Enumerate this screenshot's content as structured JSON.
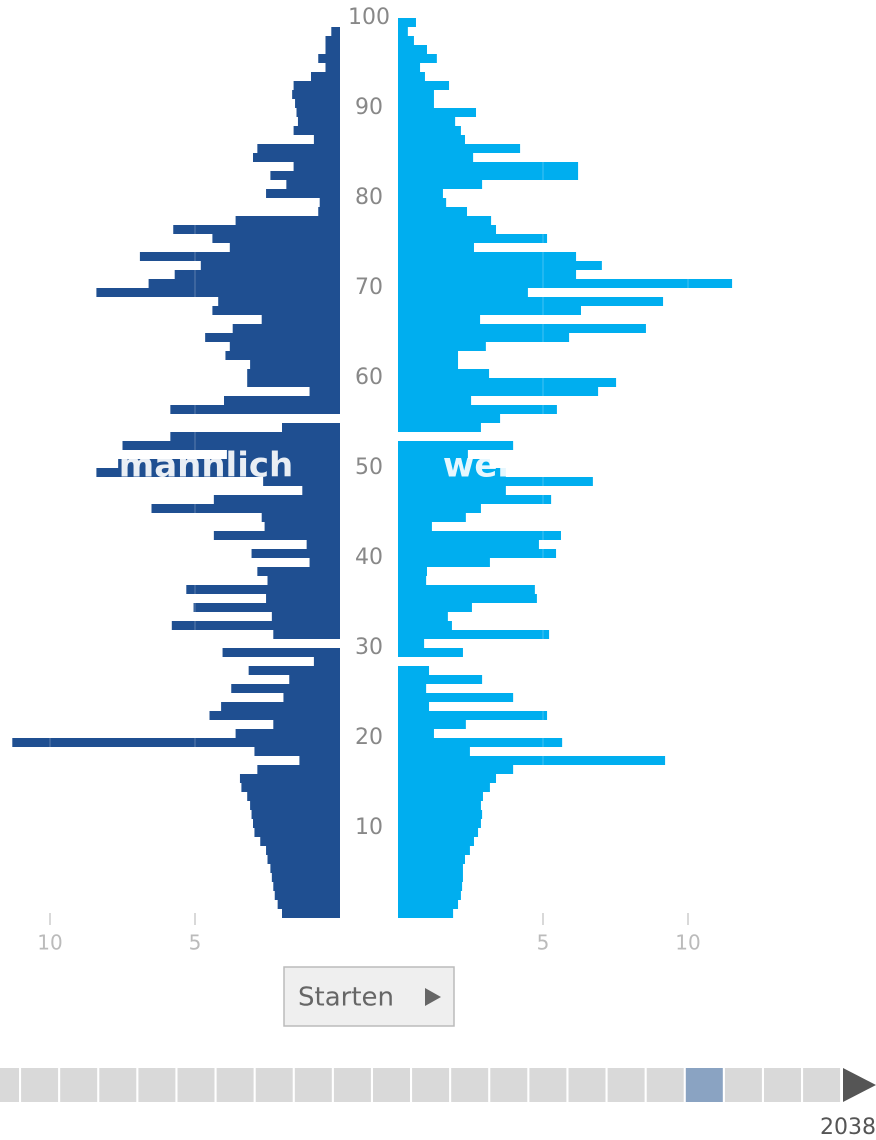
{
  "chart_data": {
    "type": "pyramid",
    "y": [
      0,
      1,
      2,
      3,
      4,
      5,
      6,
      7,
      8,
      9,
      10,
      11,
      12,
      13,
      14,
      15,
      16,
      17,
      18,
      19,
      20,
      21,
      22,
      23,
      24,
      25,
      26,
      27,
      28,
      29,
      30,
      31,
      32,
      33,
      34,
      35,
      36,
      37,
      38,
      39,
      40,
      41,
      42,
      43,
      44,
      45,
      46,
      47,
      48,
      49,
      50,
      51,
      52,
      53,
      54,
      55,
      56,
      57,
      58,
      59,
      60,
      61,
      62,
      63,
      64,
      65,
      66,
      67,
      68,
      69,
      70,
      71,
      72,
      73,
      74,
      75,
      76,
      77,
      78,
      79,
      80,
      81,
      82,
      83,
      84,
      85,
      86,
      87,
      88,
      89,
      90,
      91,
      92,
      93,
      94,
      95,
      96,
      97,
      98,
      99
    ],
    "series": [
      {
        "name": "männlich",
        "color": "#1f4f91",
        "values": [
          2.0,
          2.15,
          2.25,
          2.3,
          2.35,
          2.4,
          2.5,
          2.55,
          2.75,
          2.95,
          3.0,
          3.05,
          3.1,
          3.2,
          3.4,
          3.45,
          2.85,
          1.4,
          2.95,
          11.3,
          3.6,
          2.3,
          4.5,
          4.1,
          1.95,
          3.75,
          1.75,
          3.15,
          0.9,
          4.05,
          0,
          2.3,
          5.8,
          2.35,
          5.05,
          2.55,
          5.3,
          2.5,
          2.85,
          1.05,
          3.05,
          1.15,
          4.35,
          2.6,
          2.7,
          6.5,
          4.35,
          1.3,
          2.65,
          8.4,
          7.65,
          3.9,
          7.5,
          5.85,
          2.0,
          0,
          5.85,
          4.0,
          1.05,
          3.2,
          3.2,
          3.1,
          3.95,
          3.8,
          4.65,
          3.7,
          2.7,
          4.4,
          4.2,
          8.4,
          6.6,
          5.7,
          4.8,
          6.9,
          3.8,
          4.4,
          5.75,
          3.6,
          0.75,
          0.7,
          2.55,
          1.85,
          2.4,
          1.6,
          3.0,
          2.85,
          0.9,
          1.6,
          1.45,
          1.5,
          1.55,
          1.65,
          1.6,
          1.0,
          0.5,
          0.75,
          0.5,
          0.5,
          0.3,
          0
        ]
      },
      {
        "name": "weiblich",
        "color": "#00aeef",
        "values": [
          1.9,
          2.07,
          2.17,
          2.21,
          2.24,
          2.24,
          2.31,
          2.48,
          2.62,
          2.76,
          2.86,
          2.9,
          2.86,
          2.93,
          3.17,
          3.38,
          3.97,
          9.21,
          2.48,
          5.66,
          1.24,
          2.34,
          5.14,
          1.07,
          3.97,
          0.97,
          2.9,
          1.07,
          0,
          2.24,
          0.9,
          5.21,
          1.86,
          1.72,
          2.55,
          4.79,
          4.72,
          0.97,
          1.0,
          3.17,
          5.45,
          4.86,
          5.62,
          1.17,
          2.34,
          2.86,
          5.28,
          3.72,
          6.72,
          3.72,
          3.17,
          2.41,
          3.97,
          0,
          2.86,
          3.52,
          5.48,
          2.52,
          6.9,
          7.52,
          3.14,
          2.07,
          2.07,
          3.03,
          5.9,
          8.55,
          2.83,
          6.31,
          9.14,
          4.48,
          11.52,
          6.14,
          7.03,
          6.14,
          2.62,
          5.14,
          3.38,
          3.21,
          2.38,
          1.66,
          1.55,
          2.9,
          6.21,
          6.21,
          2.59,
          4.21,
          2.31,
          2.17,
          1.97,
          2.69,
          1.24,
          1.24,
          1.76,
          0.93,
          0.76,
          1.34,
          1.0,
          0.55,
          0.34,
          0.62
        ]
      }
    ],
    "ylim": [
      0,
      100
    ],
    "yticks": [
      10,
      20,
      30,
      40,
      50,
      60,
      70,
      80,
      90,
      100
    ],
    "xlim": [
      0,
      10
    ],
    "xticks": [
      5,
      10
    ],
    "grid": true,
    "button": "Starten",
    "year": "2038"
  }
}
